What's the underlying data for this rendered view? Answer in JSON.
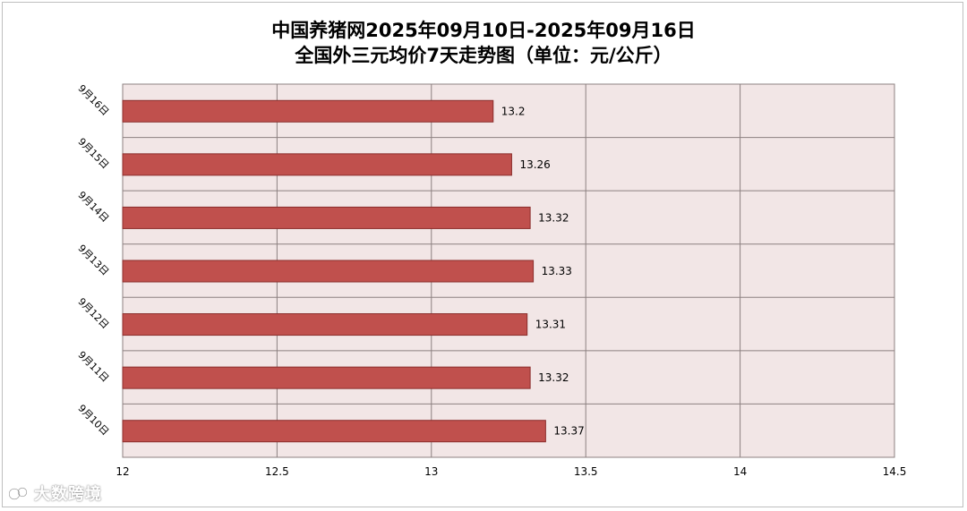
{
  "chart_data": {
    "type": "bar",
    "orientation": "horizontal",
    "title": "中国养猪网2025年09月10日-2025年09月16日",
    "subtitle": "全国外三元均价7天走势图（单位：元/公斤）",
    "categories": [
      "9月16日",
      "9月15日",
      "9月14日",
      "9月13日",
      "9月12日",
      "9月11日",
      "9月10日"
    ],
    "values": [
      13.2,
      13.26,
      13.32,
      13.33,
      13.31,
      13.32,
      13.37
    ],
    "data_labels": [
      "13.2",
      "13.26",
      "13.32",
      "13.33",
      "13.31",
      "13.32",
      "13.37"
    ],
    "xlim": [
      12,
      14.5
    ],
    "xticks": [
      12,
      12.5,
      13,
      13.5,
      14,
      14.5
    ],
    "xtick_labels": [
      "12",
      "12.5",
      "13",
      "13.5",
      "14",
      "14.5"
    ],
    "grid": true,
    "legend": "none",
    "colors": {
      "bar_fill": "#c0504d",
      "bar_stroke": "#8b2e2c",
      "plot_background": "#f2e6e6",
      "grid": "#8c8080"
    }
  },
  "watermark": {
    "text": "大数跨境",
    "icon": "brand-logo-icon"
  }
}
